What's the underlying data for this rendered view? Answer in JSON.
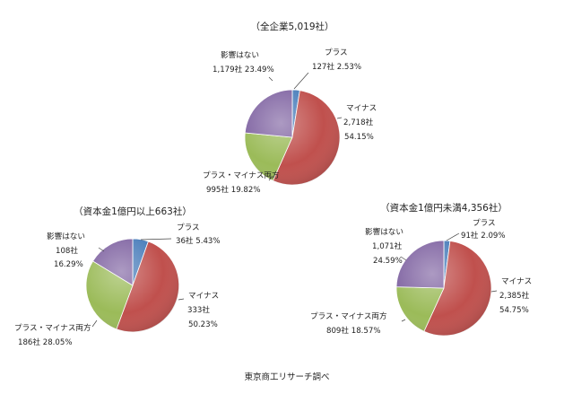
{
  "source_note": "東京商工リサーチ調べ",
  "colors": {
    "plus": "#4A7EBB",
    "minus": "#C0504D",
    "both": "#9BBB59",
    "none": "#8064A2"
  },
  "chart_data": [
    {
      "type": "pie",
      "title": "（全企業5,019社）",
      "slices": [
        {
          "name": "プラス",
          "count": "127社",
          "percent": 2.53,
          "percent_label": "2.53%"
        },
        {
          "name": "マイナス",
          "count": "2,718社",
          "percent": 54.15,
          "percent_label": "54.15%"
        },
        {
          "name": "プラス・マイナス両方",
          "count": "995社",
          "percent": 19.82,
          "percent_label": "19.82%"
        },
        {
          "name": "影響はない",
          "count": "1,179社",
          "percent": 23.49,
          "percent_label": "23.49%"
        }
      ]
    },
    {
      "type": "pie",
      "title": "（資本金1億円以上663社）",
      "slices": [
        {
          "name": "プラス",
          "count": "36社",
          "percent": 5.43,
          "percent_label": "5.43%"
        },
        {
          "name": "マイナス",
          "count": "333社",
          "percent": 50.23,
          "percent_label": "50.23%"
        },
        {
          "name": "プラス・マイナス両方",
          "count": "186社",
          "percent": 28.05,
          "percent_label": "28.05%"
        },
        {
          "name": "影響はない",
          "count": "108社",
          "percent": 16.29,
          "percent_label": "16.29%"
        }
      ]
    },
    {
      "type": "pie",
      "title": "（資本金1億円未満4,356社）",
      "slices": [
        {
          "name": "プラス",
          "count": "91社",
          "percent": 2.09,
          "percent_label": "2.09%"
        },
        {
          "name": "マイナス",
          "count": "2,385社",
          "percent": 54.75,
          "percent_label": "54.75%"
        },
        {
          "name": "プラス・マイナス両方",
          "count": "809社",
          "percent": 18.57,
          "percent_label": "18.57%"
        },
        {
          "name": "影響はない",
          "count": "1,071社",
          "percent": 24.59,
          "percent_label": "24.59%"
        }
      ]
    }
  ]
}
